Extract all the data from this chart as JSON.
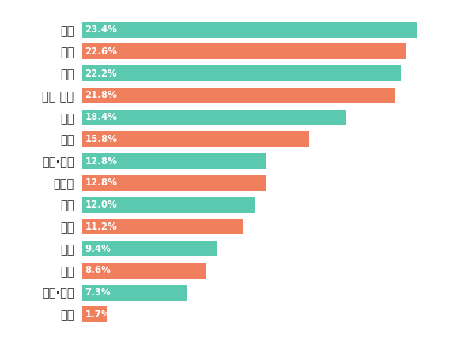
{
  "categories": [
    "보육",
    "안전",
    "복지",
    "지역 경제",
    "녹지",
    "교육",
    "보건·의료",
    "일자리",
    "교통",
    "환경",
    "주거",
    "도시",
    "문화·관광",
    "소통"
  ],
  "values": [
    23.4,
    22.6,
    22.2,
    21.8,
    18.4,
    15.8,
    12.8,
    12.8,
    12.0,
    11.2,
    9.4,
    8.6,
    7.3,
    1.7
  ],
  "colors": [
    "#5bc8b0",
    "#f07f5e",
    "#5bc8b0",
    "#f07f5e",
    "#5bc8b0",
    "#f07f5e",
    "#5bc8b0",
    "#f07f5e",
    "#5bc8b0",
    "#f07f5e",
    "#5bc8b0",
    "#f07f5e",
    "#5bc8b0",
    "#f07f5e"
  ],
  "label_color": "#ffffff",
  "background_color": "#ffffff",
  "bar_height": 0.72,
  "xlim": [
    0,
    25.5
  ],
  "label_fontsize": 8.5,
  "category_fontsize": 10.5,
  "category_color": "#333333"
}
